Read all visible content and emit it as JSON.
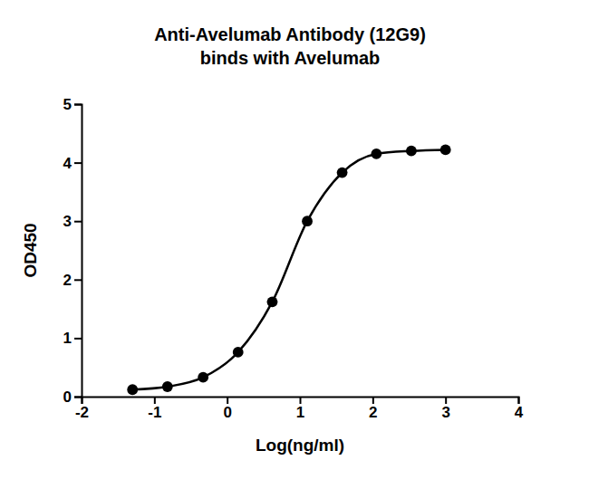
{
  "chart_data": {
    "type": "line",
    "title": "Anti-Avelumab Antibody (12G9)\nbinds with Avelumab",
    "x_label": "Log(ng/ml)",
    "y_label": "OD450",
    "x": [
      -1.3,
      -0.82,
      -0.33,
      0.15,
      0.62,
      1.1,
      1.58,
      2.05,
      2.53,
      3.0
    ],
    "series": [
      {
        "color": "#000000",
        "marker": "circle",
        "line_style": "solid",
        "values": [
          0.12,
          0.17,
          0.33,
          0.76,
          1.62,
          3.0,
          3.83,
          4.15,
          4.2,
          4.22
        ]
      }
    ],
    "xlim": [
      -2,
      4
    ],
    "xticks": [
      -2,
      -1,
      0,
      1,
      2,
      3,
      4
    ],
    "ylim": [
      0,
      5
    ],
    "yticks": [
      0,
      1,
      2,
      3,
      4,
      5
    ],
    "grid": false
  }
}
